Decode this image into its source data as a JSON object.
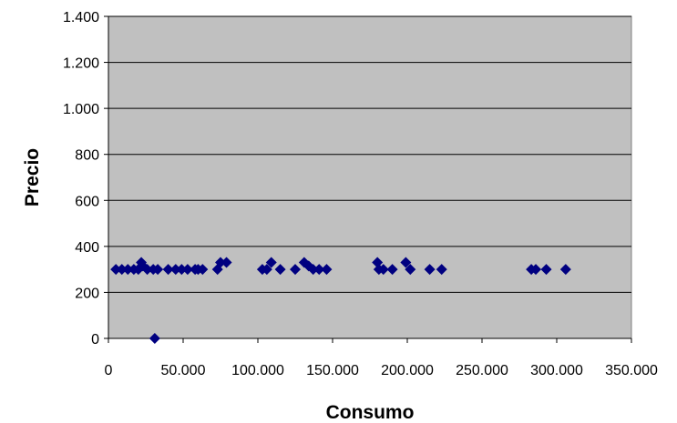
{
  "chart_data": {
    "type": "scatter",
    "title": "",
    "xlabel": "Consumo",
    "ylabel": "Precio",
    "xlim": [
      0,
      350000
    ],
    "ylim": [
      0,
      1400
    ],
    "x_ticks": [
      0,
      50000,
      100000,
      150000,
      200000,
      250000,
      300000,
      350000
    ],
    "x_tick_labels": [
      "0",
      "50.000",
      "100.000",
      "150.000",
      "200.000",
      "250.000",
      "300.000",
      "350.000"
    ],
    "y_ticks": [
      0,
      200,
      400,
      600,
      800,
      1000,
      1200,
      1400
    ],
    "y_tick_labels": [
      "0",
      "200",
      "400",
      "600",
      "800",
      "1.000",
      "1.200",
      "1.400"
    ],
    "grid": "horizontal",
    "legend": "none",
    "colors": {
      "plot_background": "#c0c0c0",
      "marker": "#000080",
      "gridline": "#000000"
    },
    "marker_shape": "diamond",
    "series": [
      {
        "points": [
          [
            5000,
            300
          ],
          [
            9000,
            300
          ],
          [
            13000,
            300
          ],
          [
            17000,
            300
          ],
          [
            20000,
            300
          ],
          [
            22000,
            330
          ],
          [
            23000,
            315
          ],
          [
            26000,
            300
          ],
          [
            30000,
            300
          ],
          [
            31000,
            0
          ],
          [
            33000,
            300
          ],
          [
            40000,
            300
          ],
          [
            45000,
            300
          ],
          [
            49000,
            300
          ],
          [
            53000,
            300
          ],
          [
            58000,
            300
          ],
          [
            60000,
            300
          ],
          [
            63000,
            300
          ],
          [
            73000,
            300
          ],
          [
            75000,
            330
          ],
          [
            79000,
            330
          ],
          [
            103000,
            300
          ],
          [
            106000,
            300
          ],
          [
            109000,
            330
          ],
          [
            115000,
            300
          ],
          [
            125000,
            300
          ],
          [
            131000,
            330
          ],
          [
            134000,
            315
          ],
          [
            137000,
            300
          ],
          [
            141000,
            300
          ],
          [
            146000,
            300
          ],
          [
            180000,
            330
          ],
          [
            181000,
            300
          ],
          [
            184000,
            300
          ],
          [
            190000,
            300
          ],
          [
            199000,
            330
          ],
          [
            202000,
            300
          ],
          [
            215000,
            300
          ],
          [
            223000,
            300
          ],
          [
            283000,
            300
          ],
          [
            286000,
            300
          ],
          [
            293000,
            300
          ],
          [
            306000,
            300
          ]
        ]
      }
    ]
  }
}
